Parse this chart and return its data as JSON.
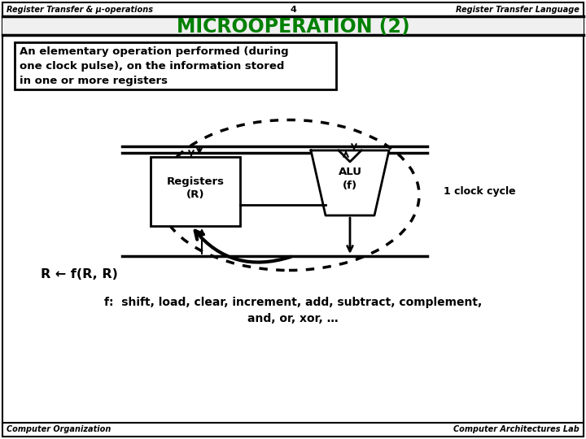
{
  "bg_color": "#ffffff",
  "header_left": "Register Transfer & μ-operations",
  "header_center": "4",
  "header_right": "Register Transfer Language",
  "title": "MICROOPERATION (2)",
  "title_color": "#008000",
  "definition_text": "An elementary operation performed (during\none clock pulse), on the information stored\nin one or more registers",
  "register_label": "Registers\n(R)",
  "alu_label": "ALU\n(f)",
  "clock_label": "1 clock cycle",
  "formula": "R ← f(R, R)",
  "functions_line1": "f:  shift, load, clear, increment, add, subtract, complement,",
  "functions_line2": "and, or, xor, …",
  "footer_left": "Computer Organization",
  "footer_right": "Computer Architectures Lab"
}
